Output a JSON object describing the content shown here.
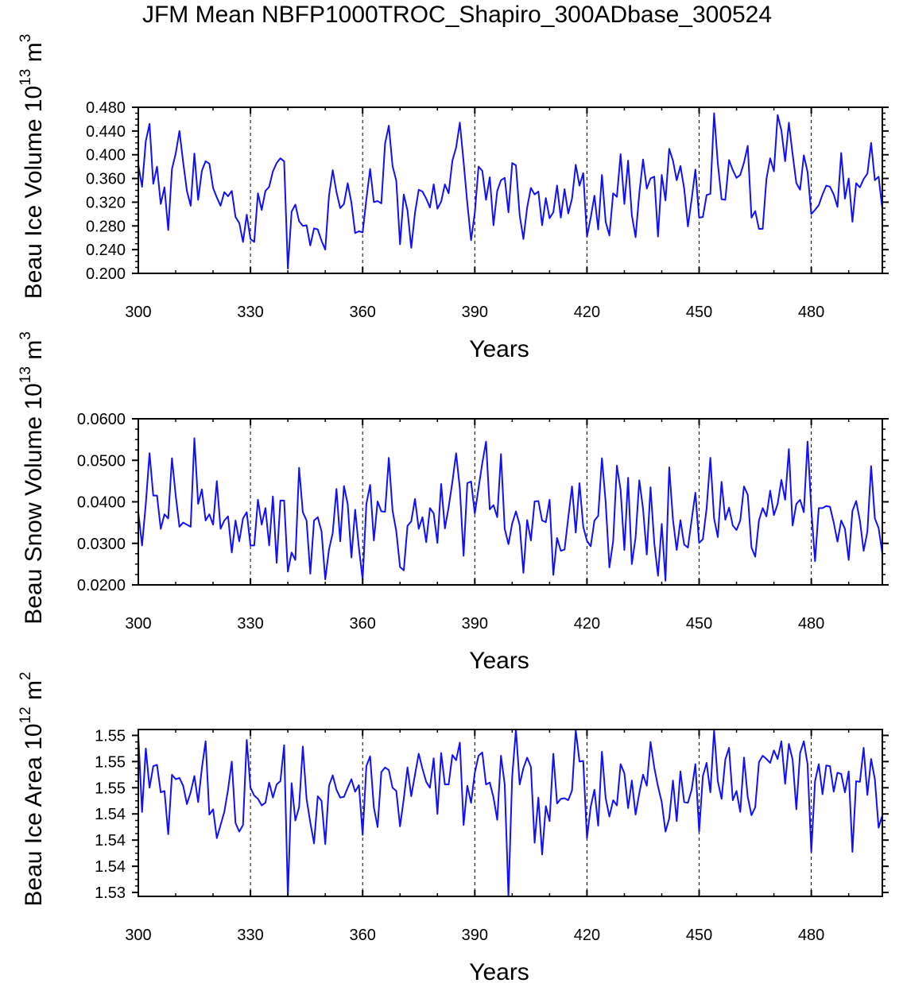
{
  "page_title": "JFM Mean NBFP1000TROC_Shapiro_300ADbase_300524",
  "colors": {
    "series": "#1010ff",
    "axis": "#000000",
    "gridline": "#000000",
    "background": "#ffffff"
  },
  "chart_data": [
    {
      "type": "line",
      "title": "",
      "xlabel": "Years",
      "ylabel": "Beau Ice Volume",
      "ylabel_unit": "10",
      "ylabel_exp": "13",
      "ylabel_unit2": "m",
      "ylabel_exp2": "3",
      "xlim": [
        300,
        499
      ],
      "ylim": [
        0.2,
        0.48
      ],
      "xticks": [
        300,
        330,
        360,
        390,
        420,
        450,
        480
      ],
      "yticks": [
        0.2,
        0.24,
        0.28,
        0.32,
        0.36,
        0.4,
        0.44,
        0.48
      ],
      "ytick_labels": [
        "0.200",
        "0.240",
        "0.280",
        "0.320",
        "0.360",
        "0.400",
        "0.440",
        "0.480"
      ],
      "vlines": [
        330,
        360,
        390,
        420,
        450,
        480
      ],
      "grid": false,
      "series": [
        {
          "name": "Beau Ice Volume",
          "x_start": 300,
          "values": [
            0.383,
            0.346,
            0.423,
            0.452,
            0.351,
            0.38,
            0.317,
            0.345,
            0.273,
            0.376,
            0.402,
            0.44,
            0.387,
            0.339,
            0.314,
            0.402,
            0.324,
            0.373,
            0.389,
            0.385,
            0.344,
            0.328,
            0.314,
            0.337,
            0.33,
            0.339,
            0.295,
            0.285,
            0.253,
            0.299,
            0.258,
            0.253,
            0.335,
            0.307,
            0.339,
            0.346,
            0.372,
            0.386,
            0.394,
            0.389,
            0.208,
            0.304,
            0.316,
            0.288,
            0.28,
            0.281,
            0.247,
            0.276,
            0.274,
            0.255,
            0.24,
            0.331,
            0.374,
            0.337,
            0.31,
            0.317,
            0.352,
            0.319,
            0.268,
            0.271,
            0.269,
            0.325,
            0.376,
            0.32,
            0.322,
            0.318,
            0.419,
            0.449,
            0.381,
            0.356,
            0.249,
            0.333,
            0.306,
            0.243,
            0.302,
            0.341,
            0.338,
            0.326,
            0.311,
            0.35,
            0.309,
            0.321,
            0.35,
            0.335,
            0.39,
            0.412,
            0.454,
            0.388,
            0.318,
            0.256,
            0.302,
            0.38,
            0.373,
            0.324,
            0.362,
            0.281,
            0.339,
            0.357,
            0.361,
            0.303,
            0.386,
            0.382,
            0.298,
            0.258,
            0.311,
            0.344,
            0.333,
            0.338,
            0.281,
            0.327,
            0.293,
            0.303,
            0.348,
            0.294,
            0.342,
            0.301,
            0.326,
            0.383,
            0.348,
            0.369,
            0.262,
            0.294,
            0.331,
            0.274,
            0.366,
            0.287,
            0.264,
            0.335,
            0.329,
            0.401,
            0.317,
            0.39,
            0.298,
            0.261,
            0.335,
            0.392,
            0.343,
            0.36,
            0.363,
            0.262,
            0.366,
            0.323,
            0.41,
            0.39,
            0.357,
            0.381,
            0.343,
            0.279,
            0.325,
            0.375,
            0.294,
            0.295,
            0.332,
            0.334,
            0.47,
            0.385,
            0.325,
            0.324,
            0.391,
            0.374,
            0.361,
            0.366,
            0.387,
            0.415,
            0.294,
            0.305,
            0.275,
            0.275,
            0.359,
            0.394,
            0.372,
            0.467,
            0.441,
            0.389,
            0.454,
            0.401,
            0.352,
            0.341,
            0.399,
            0.371,
            0.3,
            0.307,
            0.315,
            0.333,
            0.348,
            0.346,
            0.333,
            0.312,
            0.403,
            0.326,
            0.36,
            0.287,
            0.352,
            0.345,
            0.359,
            0.368,
            0.42,
            0.357,
            0.363,
            0.309
          ]
        }
      ]
    },
    {
      "type": "line",
      "title": "",
      "xlabel": "Years",
      "ylabel": "Beau Snow Volume",
      "ylabel_unit": "10",
      "ylabel_exp": "13",
      "ylabel_unit2": "m",
      "ylabel_exp2": "3",
      "xlim": [
        300,
        499
      ],
      "ylim": [
        0.02,
        0.06
      ],
      "xticks": [
        300,
        330,
        360,
        390,
        420,
        450,
        480
      ],
      "yticks": [
        0.02,
        0.03,
        0.04,
        0.05,
        0.06
      ],
      "ytick_labels": [
        "0.0200",
        "0.0300",
        "0.0400",
        "0.0500",
        "0.0600"
      ],
      "vlines": [
        330,
        360,
        390,
        420,
        450,
        480
      ],
      "grid": false,
      "series": [
        {
          "name": "Beau Snow Volume",
          "x_start": 300,
          "values": [
            0.0375,
            0.0295,
            0.0395,
            0.0517,
            0.0415,
            0.0415,
            0.0335,
            0.037,
            0.036,
            0.0505,
            0.0415,
            0.034,
            0.035,
            0.0345,
            0.034,
            0.0553,
            0.0395,
            0.043,
            0.0355,
            0.037,
            0.0345,
            0.045,
            0.0335,
            0.0355,
            0.0365,
            0.0278,
            0.0355,
            0.0305,
            0.036,
            0.0375,
            0.0295,
            0.0295,
            0.0405,
            0.0345,
            0.0385,
            0.0295,
            0.0413,
            0.0253,
            0.0403,
            0.0403,
            0.0232,
            0.0278,
            0.026,
            0.0482,
            0.0375,
            0.0355,
            0.0227,
            0.0355,
            0.0363,
            0.0329,
            0.0213,
            0.0285,
            0.0325,
            0.0431,
            0.0305,
            0.0438,
            0.0395,
            0.0266,
            0.0381,
            0.0289,
            0.0213,
            0.0395,
            0.0441,
            0.0307,
            0.0401,
            0.0377,
            0.0376,
            0.0506,
            0.0379,
            0.0329,
            0.0243,
            0.0235,
            0.0342,
            0.0353,
            0.0407,
            0.0335,
            0.0363,
            0.0303,
            0.0385,
            0.0372,
            0.0301,
            0.0443,
            0.0336,
            0.0387,
            0.0448,
            0.0517,
            0.0432,
            0.027,
            0.0445,
            0.0449,
            0.0372,
            0.0433,
            0.0493,
            0.0545,
            0.0382,
            0.0392,
            0.0363,
            0.0515,
            0.0335,
            0.0298,
            0.0348,
            0.0377,
            0.0344,
            0.0229,
            0.0356,
            0.0307,
            0.0401,
            0.0402,
            0.0355,
            0.0351,
            0.0405,
            0.0224,
            0.0313,
            0.0282,
            0.0285,
            0.0362,
            0.0437,
            0.0326,
            0.0445,
            0.034,
            0.0306,
            0.0293,
            0.0355,
            0.0366,
            0.0505,
            0.0399,
            0.0242,
            0.0305,
            0.0487,
            0.0429,
            0.0284,
            0.0458,
            0.025,
            0.0314,
            0.0452,
            0.0383,
            0.0273,
            0.0435,
            0.0301,
            0.0222,
            0.0347,
            0.021,
            0.0483,
            0.0357,
            0.0284,
            0.0356,
            0.0297,
            0.029,
            0.0357,
            0.0422,
            0.0301,
            0.031,
            0.0384,
            0.0506,
            0.036,
            0.0315,
            0.0448,
            0.0357,
            0.0386,
            0.0343,
            0.0332,
            0.0355,
            0.0437,
            0.0417,
            0.029,
            0.0268,
            0.0355,
            0.0385,
            0.0365,
            0.0427,
            0.0368,
            0.0395,
            0.0453,
            0.0405,
            0.0527,
            0.0343,
            0.0395,
            0.0405,
            0.0375,
            0.0545,
            0.0382,
            0.0257,
            0.0385,
            0.0385,
            0.039,
            0.0388,
            0.035,
            0.0304,
            0.0355,
            0.0335,
            0.026,
            0.0378,
            0.0402,
            0.0355,
            0.0282,
            0.0328,
            0.0486,
            0.036,
            0.0337,
            0.0276
          ]
        }
      ]
    },
    {
      "type": "line",
      "title": "",
      "xlabel": "Years",
      "ylabel": "Beau Ice Area",
      "ylabel_unit": "10",
      "ylabel_exp": "12",
      "ylabel_unit2": "m",
      "ylabel_exp2": "2",
      "xlim": [
        300,
        499
      ],
      "ylim": [
        1.5299,
        1.5554
      ],
      "xticks": [
        300,
        330,
        360,
        390,
        420,
        450,
        480
      ],
      "yticks": [
        1.5305,
        1.5345,
        1.5385,
        1.5425,
        1.5465,
        1.5505,
        1.5545
      ],
      "ytick_labels": [
        "1.53",
        "1.54",
        "1.54",
        "1.54",
        "1.55",
        "1.55",
        "1.55"
      ],
      "vlines": [
        330,
        360,
        390,
        420,
        450,
        480
      ],
      "grid": false,
      "series": [
        {
          "name": "Beau Ice Area",
          "x_start": 300,
          "values": [
            1.5545,
            1.5428,
            1.5525,
            1.5465,
            1.5498,
            1.55,
            1.5458,
            1.546,
            1.5394,
            1.5485,
            1.5478,
            1.548,
            1.5468,
            1.544,
            1.5458,
            1.5483,
            1.5443,
            1.5495,
            1.5536,
            1.5424,
            1.5432,
            1.5388,
            1.5408,
            1.5428,
            1.5462,
            1.5505,
            1.5411,
            1.5398,
            1.5408,
            1.5538,
            1.5465,
            1.5453,
            1.5448,
            1.5438,
            1.5442,
            1.5473,
            1.545,
            1.547,
            1.5475,
            1.553,
            1.5299,
            1.5472,
            1.5415,
            1.5435,
            1.5528,
            1.5448,
            1.5412,
            1.538,
            1.5452,
            1.5445,
            1.5379,
            1.5468,
            1.5484,
            1.5462,
            1.545,
            1.5451,
            1.5465,
            1.5478,
            1.5459,
            1.5469,
            1.5393,
            1.5498,
            1.5513,
            1.5435,
            1.5405,
            1.5489,
            1.5496,
            1.5492,
            1.5465,
            1.546,
            1.5406,
            1.5448,
            1.5496,
            1.5452,
            1.5485,
            1.5517,
            1.5494,
            1.5474,
            1.5465,
            1.551,
            1.5425,
            1.5518,
            1.547,
            1.547,
            1.5515,
            1.5507,
            1.5534,
            1.5408,
            1.5468,
            1.5442,
            1.5488,
            1.5514,
            1.5519,
            1.547,
            1.5473,
            1.545,
            1.5416,
            1.5514,
            1.547,
            1.5299,
            1.5482,
            1.5554,
            1.547,
            1.5495,
            1.5511,
            1.5497,
            1.5381,
            1.545,
            1.5363,
            1.5437,
            1.5414,
            1.5517,
            1.5441,
            1.5448,
            1.5449,
            1.5446,
            1.5461,
            1.5553,
            1.5505,
            1.5506,
            1.5388,
            1.5436,
            1.5462,
            1.5407,
            1.552,
            1.5449,
            1.5421,
            1.5446,
            1.5438,
            1.5501,
            1.5487,
            1.5434,
            1.5476,
            1.5424,
            1.5457,
            1.5485,
            1.5468,
            1.5535,
            1.5496,
            1.5467,
            1.5443,
            1.5398,
            1.5418,
            1.5476,
            1.5414,
            1.549,
            1.5443,
            1.5442,
            1.5462,
            1.5501,
            1.5398,
            1.5483,
            1.5503,
            1.5458,
            1.5553,
            1.5475,
            1.5448,
            1.5508,
            1.5526,
            1.5446,
            1.546,
            1.5428,
            1.5511,
            1.5451,
            1.5423,
            1.5435,
            1.5504,
            1.5514,
            1.5509,
            1.5503,
            1.5522,
            1.5509,
            1.5536,
            1.5471,
            1.5532,
            1.5508,
            1.5432,
            1.5518,
            1.5536,
            1.5501,
            1.5367,
            1.5475,
            1.5501,
            1.5455,
            1.5499,
            1.5498,
            1.5459,
            1.5488,
            1.5486,
            1.5458,
            1.549,
            1.5367,
            1.5475,
            1.5474,
            1.5526,
            1.5454,
            1.5509,
            1.5478,
            1.5404,
            1.5423
          ]
        }
      ]
    }
  ]
}
